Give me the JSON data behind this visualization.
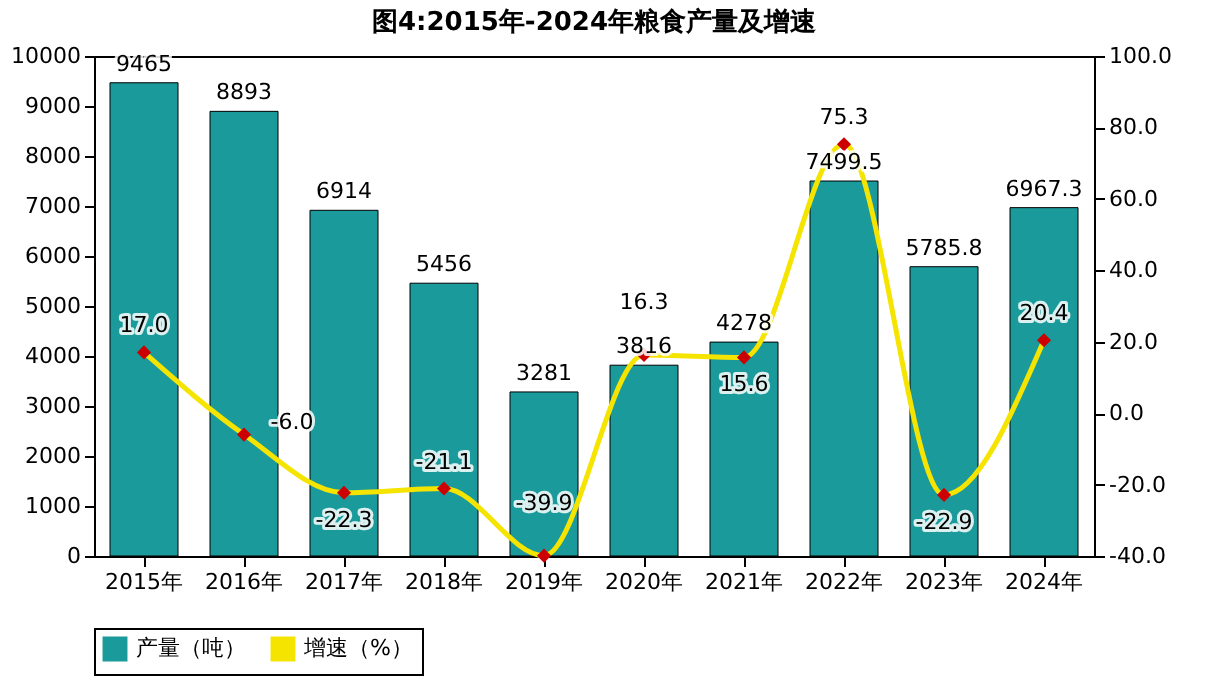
{
  "chart_data": {
    "type": "bar",
    "title": "图4:2015年-2024年粮食产量及增速",
    "categories": [
      "2015年",
      "2016年",
      "2017年",
      "2018年",
      "2019年",
      "2020年",
      "2021年",
      "2022年",
      "2023年",
      "2024年"
    ],
    "series": [
      {
        "name": "产量（吨）",
        "color": "#1a9a9a",
        "values": [
          9465,
          8893,
          6914,
          5456,
          3281,
          3816,
          4278,
          7499.5,
          5785.8,
          6967.3
        ]
      },
      {
        "name": "增速（%）",
        "type": "line",
        "axis": "y2",
        "color": "#f5e400",
        "marker": "diamond",
        "values": [
          17.0,
          -6.0,
          -22.3,
          -21.1,
          -39.9,
          16.3,
          15.6,
          75.3,
          -22.9,
          20.4
        ],
        "value_labels": [
          "17.0",
          "-6.0",
          "-22.3",
          "-21.1",
          "-39.9",
          "16.3",
          "15.6",
          "75.3",
          "-22.9",
          "20.4"
        ]
      }
    ],
    "data_labels": true,
    "ylim": [
      0,
      10000
    ],
    "yticks": [
      0,
      1000,
      2000,
      3000,
      4000,
      5000,
      6000,
      7000,
      8000,
      9000,
      10000
    ],
    "y2lim": [
      -40,
      100
    ],
    "y2ticks": [
      {
        "value": -40,
        "label": "-40.0"
      },
      {
        "value": -20,
        "label": "-20.0"
      },
      {
        "value": 0,
        "label": "0.0"
      },
      {
        "value": 20,
        "label": "20.0"
      },
      {
        "value": 40,
        "label": "40.0"
      },
      {
        "value": 60,
        "label": "60.0"
      },
      {
        "value": 80,
        "label": "80.0"
      },
      {
        "value": 100,
        "label": "100.0"
      }
    ],
    "legend": "bottom",
    "grid": false
  }
}
